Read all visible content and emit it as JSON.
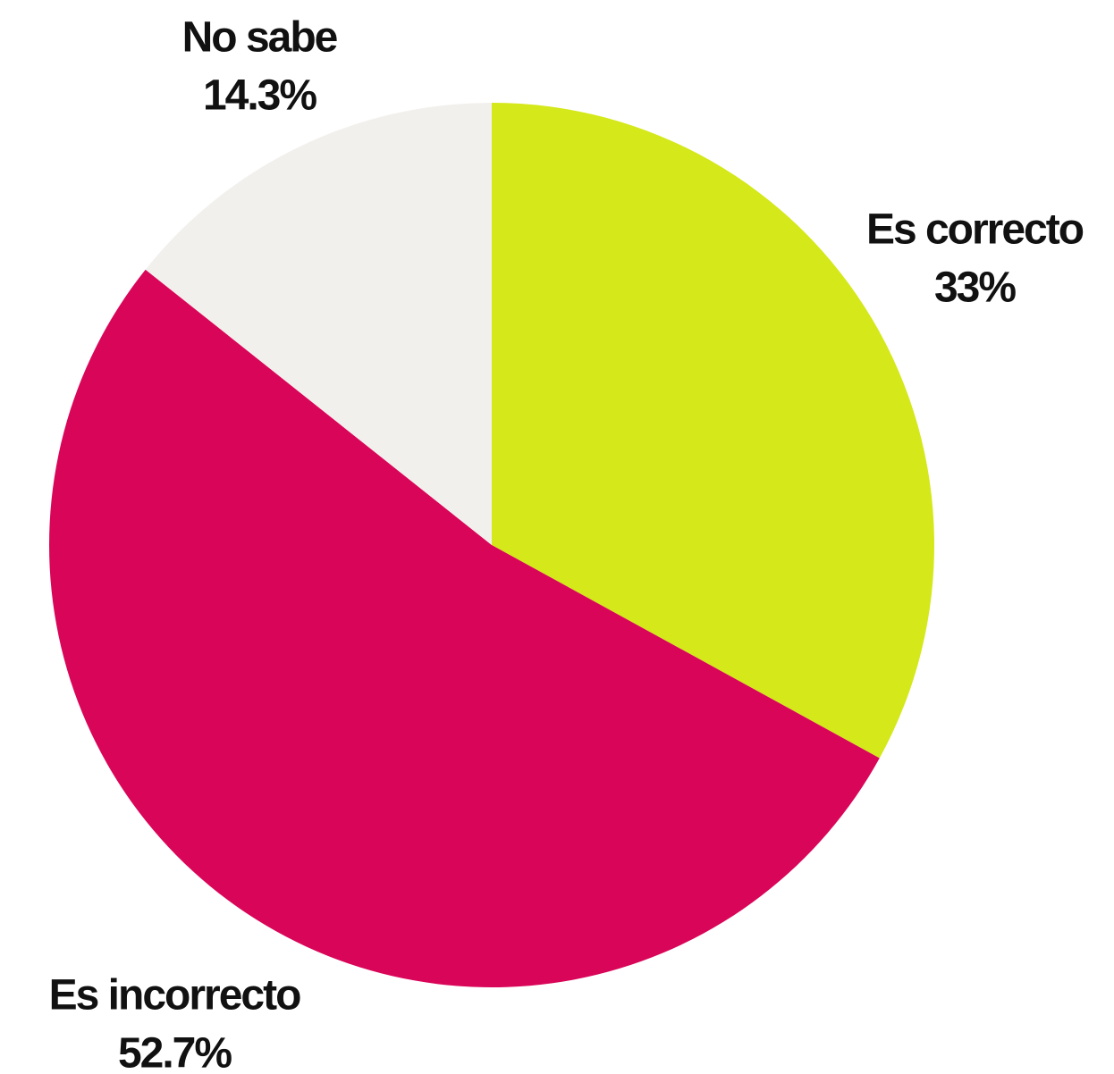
{
  "chart_data": {
    "type": "pie",
    "categories": [
      "Es correcto",
      "Es incorrecto",
      "No sabe"
    ],
    "values": [
      33,
      52.7,
      14.3
    ],
    "value_labels": [
      "33%",
      "52.7%",
      "14.3%"
    ],
    "colors": [
      "#d4e81a",
      "#d90558",
      "#f2f0ed"
    ]
  }
}
